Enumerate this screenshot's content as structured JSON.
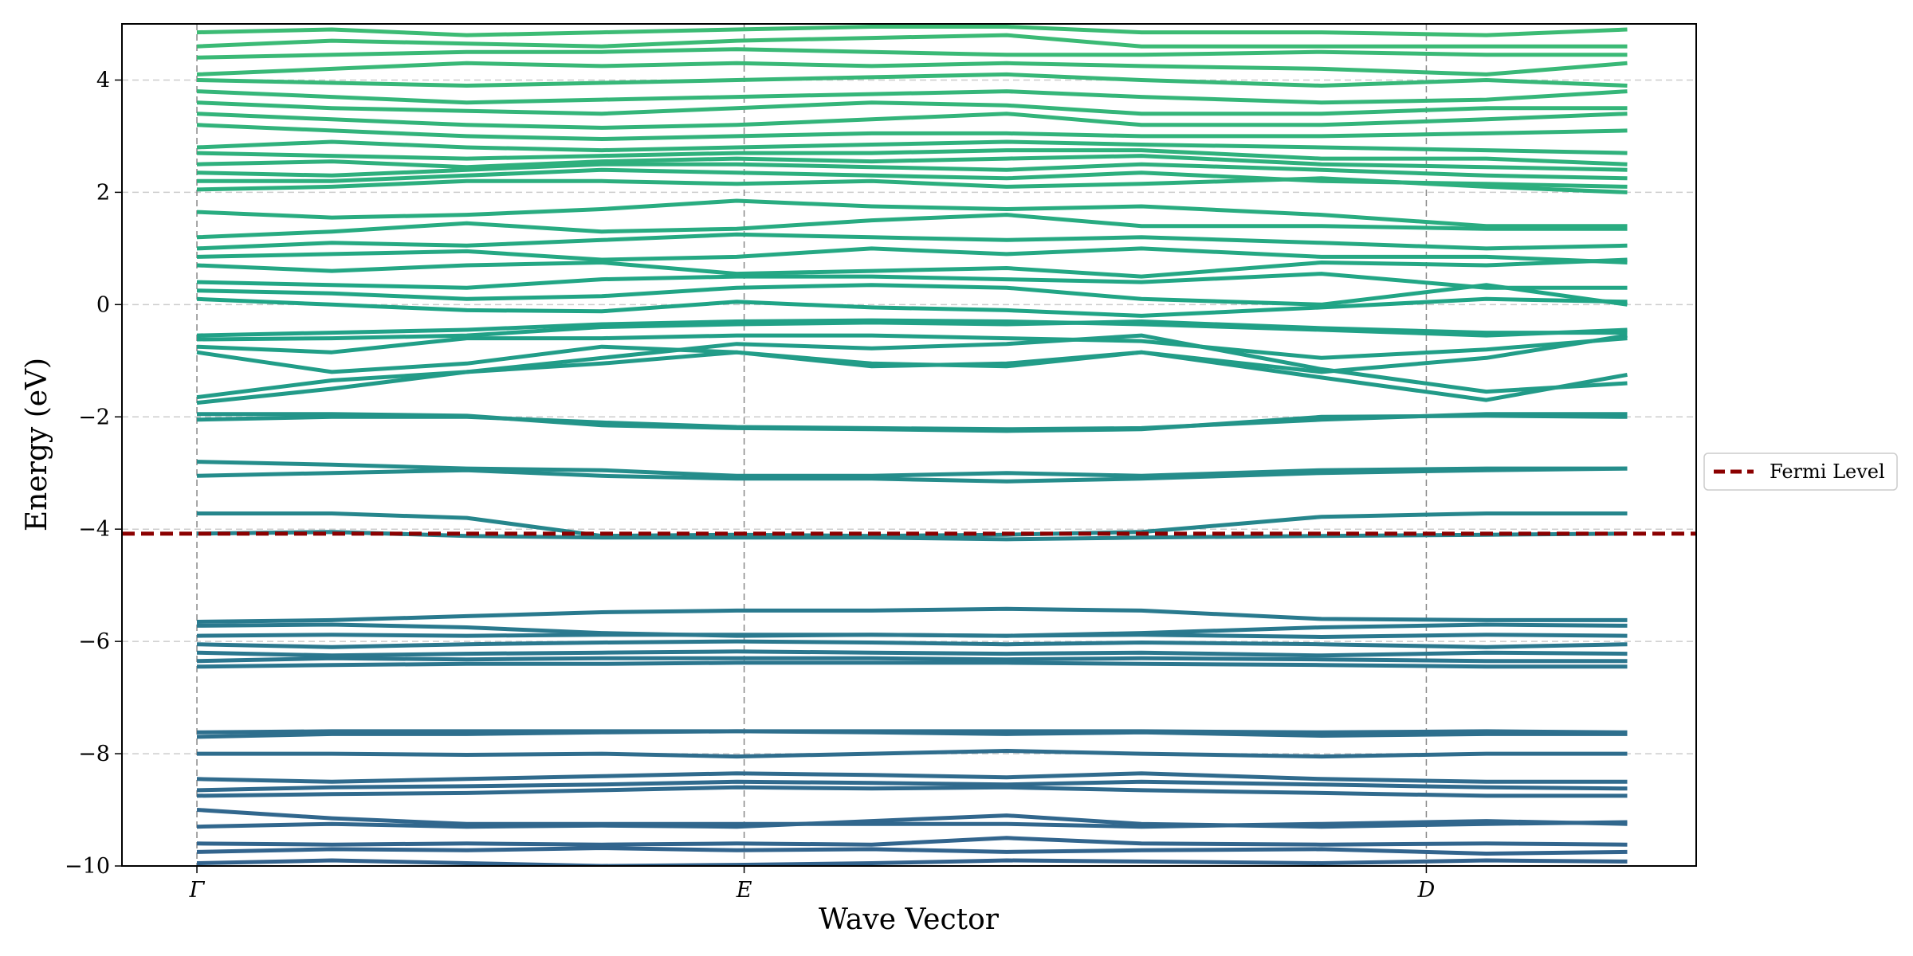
{
  "chart_data": {
    "type": "line",
    "title": "",
    "xlabel": "Wave Vector",
    "ylabel": "Energy (eV)",
    "ylim": [
      -10,
      5
    ],
    "xlim": [
      -0.05,
      1.0
    ],
    "grid": true,
    "legend_position": "center-right-outside",
    "colormap": [
      "#33638d",
      "#287d8e",
      "#20a486",
      "#3dbc74"
    ],
    "x": [
      0.0,
      0.09,
      0.18,
      0.27,
      0.36,
      0.45,
      0.54,
      0.63,
      0.75,
      0.86,
      0.954
    ],
    "x_ticks": [
      {
        "value": 0.0,
        "label": "Γ"
      },
      {
        "value": 0.365,
        "label": "E"
      },
      {
        "value": 0.82,
        "label": "D"
      }
    ],
    "y_ticks": [
      {
        "value": 4,
        "label": "4"
      },
      {
        "value": 2,
        "label": "2"
      },
      {
        "value": 0,
        "label": "0"
      },
      {
        "value": -2,
        "label": "−2"
      },
      {
        "value": -4,
        "label": "−4"
      },
      {
        "value": -6,
        "label": "−6"
      },
      {
        "value": -8,
        "label": "−8"
      },
      {
        "value": -10,
        "label": "−10"
      }
    ],
    "fermi_level": {
      "value": -4.08,
      "label": "Fermi Level",
      "color": "#8b0000"
    },
    "legend": [
      {
        "label": "Fermi Level",
        "color": "#8b0000",
        "style": "dashed"
      }
    ],
    "series": [
      {
        "values": [
          -9.95,
          -9.9,
          -9.95,
          -10.0,
          -9.98,
          -9.95,
          -9.9,
          -9.92,
          -9.95,
          -9.9,
          -9.92
        ]
      },
      {
        "values": [
          -9.75,
          -9.7,
          -9.72,
          -9.68,
          -9.72,
          -9.7,
          -9.75,
          -9.72,
          -9.7,
          -9.78,
          -9.75
        ]
      },
      {
        "values": [
          -9.6,
          -9.62,
          -9.6,
          -9.62,
          -9.6,
          -9.62,
          -9.5,
          -9.6,
          -9.62,
          -9.6,
          -9.62
        ]
      },
      {
        "values": [
          -9.3,
          -9.25,
          -9.3,
          -9.28,
          -9.3,
          -9.2,
          -9.1,
          -9.25,
          -9.3,
          -9.25,
          -9.22
        ]
      },
      {
        "values": [
          -9.0,
          -9.15,
          -9.25,
          -9.25,
          -9.25,
          -9.25,
          -9.25,
          -9.3,
          -9.25,
          -9.2,
          -9.25
        ]
      },
      {
        "values": [
          -8.75,
          -8.72,
          -8.7,
          -8.65,
          -8.6,
          -8.62,
          -8.6,
          -8.65,
          -8.7,
          -8.75,
          -8.75
        ]
      },
      {
        "values": [
          -8.65,
          -8.6,
          -8.58,
          -8.55,
          -8.5,
          -8.52,
          -8.55,
          -8.5,
          -8.55,
          -8.6,
          -8.62
        ]
      },
      {
        "values": [
          -8.45,
          -8.5,
          -8.45,
          -8.4,
          -8.35,
          -8.38,
          -8.42,
          -8.35,
          -8.45,
          -8.5,
          -8.5
        ]
      },
      {
        "values": [
          -8.0,
          -8.0,
          -8.02,
          -8.0,
          -8.05,
          -8.0,
          -7.95,
          -8.0,
          -8.05,
          -8.0,
          -8.0
        ]
      },
      {
        "values": [
          -7.7,
          -7.65,
          -7.65,
          -7.62,
          -7.6,
          -7.62,
          -7.65,
          -7.62,
          -7.68,
          -7.65,
          -7.65
        ]
      },
      {
        "values": [
          -7.62,
          -7.6,
          -7.6,
          -7.6,
          -7.6,
          -7.6,
          -7.6,
          -7.6,
          -7.62,
          -7.6,
          -7.62
        ]
      },
      {
        "values": [
          -6.45,
          -6.42,
          -6.4,
          -6.4,
          -6.38,
          -6.38,
          -6.38,
          -6.4,
          -6.42,
          -6.45,
          -6.45
        ]
      },
      {
        "values": [
          -6.35,
          -6.3,
          -6.32,
          -6.3,
          -6.3,
          -6.3,
          -6.32,
          -6.3,
          -6.32,
          -6.35,
          -6.35
        ]
      },
      {
        "values": [
          -6.2,
          -6.25,
          -6.22,
          -6.2,
          -6.18,
          -6.2,
          -6.22,
          -6.2,
          -6.25,
          -6.2,
          -6.22
        ]
      },
      {
        "values": [
          -6.05,
          -6.1,
          -6.05,
          -6.02,
          -6.0,
          -6.02,
          -6.05,
          -6.02,
          -6.05,
          -6.1,
          -6.05
        ]
      },
      {
        "values": [
          -5.9,
          -5.88,
          -5.9,
          -5.88,
          -5.88,
          -5.88,
          -5.9,
          -5.88,
          -5.92,
          -5.88,
          -5.9
        ]
      },
      {
        "values": [
          -5.72,
          -5.7,
          -5.75,
          -5.85,
          -5.9,
          -5.88,
          -5.9,
          -5.85,
          -5.75,
          -5.7,
          -5.72
        ]
      },
      {
        "values": [
          -5.65,
          -5.62,
          -5.55,
          -5.48,
          -5.45,
          -5.45,
          -5.42,
          -5.45,
          -5.6,
          -5.62,
          -5.62
        ]
      },
      {
        "values": [
          -4.08,
          -4.05,
          -4.12,
          -4.15,
          -4.15,
          -4.15,
          -4.18,
          -4.15,
          -4.12,
          -4.1,
          -4.08
        ]
      },
      {
        "values": [
          -3.72,
          -3.72,
          -3.8,
          -4.12,
          -4.1,
          -4.12,
          -4.1,
          -4.05,
          -3.78,
          -3.72,
          -3.72
        ]
      },
      {
        "values": [
          -3.05,
          -3.0,
          -2.95,
          -3.05,
          -3.1,
          -3.1,
          -3.15,
          -3.1,
          -3.0,
          -2.95,
          -2.92
        ]
      },
      {
        "values": [
          -2.8,
          -2.85,
          -2.92,
          -2.95,
          -3.05,
          -3.05,
          -3.0,
          -3.05,
          -2.95,
          -2.92,
          -2.92
        ]
      },
      {
        "values": [
          -2.05,
          -2.0,
          -2.0,
          -2.1,
          -2.18,
          -2.2,
          -2.22,
          -2.2,
          -2.05,
          -1.95,
          -1.95
        ]
      },
      {
        "values": [
          -1.95,
          -1.95,
          -1.98,
          -2.15,
          -2.2,
          -2.22,
          -2.25,
          -2.22,
          -2.0,
          -1.98,
          -2.0
        ]
      },
      {
        "values": [
          -1.75,
          -1.5,
          -1.2,
          -1.05,
          -0.85,
          -1.1,
          -1.05,
          -0.85,
          -1.3,
          -1.7,
          -1.25
        ]
      },
      {
        "values": [
          -1.65,
          -1.35,
          -1.2,
          -0.95,
          -0.7,
          -0.78,
          -0.7,
          -0.55,
          -1.15,
          -1.55,
          -1.4
        ]
      },
      {
        "values": [
          -0.85,
          -1.2,
          -1.05,
          -0.75,
          -0.85,
          -1.05,
          -1.1,
          -0.85,
          -1.2,
          -0.95,
          -0.55
        ]
      },
      {
        "values": [
          -0.75,
          -0.85,
          -0.6,
          -0.6,
          -0.55,
          -0.55,
          -0.6,
          -0.65,
          -0.95,
          -0.8,
          -0.6
        ]
      },
      {
        "values": [
          -0.62,
          -0.6,
          -0.55,
          -0.4,
          -0.35,
          -0.32,
          -0.35,
          -0.3,
          -0.42,
          -0.5,
          -0.5
        ]
      },
      {
        "values": [
          -0.55,
          -0.5,
          -0.45,
          -0.35,
          -0.3,
          -0.28,
          -0.3,
          -0.35,
          -0.45,
          -0.55,
          -0.45
        ]
      },
      {
        "values": [
          0.1,
          0.0,
          -0.1,
          -0.12,
          0.05,
          -0.05,
          -0.1,
          -0.2,
          -0.05,
          0.1,
          0.05
        ]
      },
      {
        "values": [
          0.25,
          0.2,
          0.1,
          0.15,
          0.3,
          0.35,
          0.3,
          0.1,
          0.0,
          0.35,
          0.0
        ]
      },
      {
        "values": [
          0.4,
          0.35,
          0.3,
          0.45,
          0.5,
          0.5,
          0.45,
          0.4,
          0.55,
          0.3,
          0.3
        ]
      },
      {
        "values": [
          0.7,
          0.6,
          0.7,
          0.75,
          0.55,
          0.6,
          0.65,
          0.5,
          0.75,
          0.7,
          0.8
        ]
      },
      {
        "values": [
          0.85,
          0.9,
          0.95,
          0.8,
          0.85,
          1.0,
          0.9,
          1.0,
          0.85,
          0.85,
          0.75
        ]
      },
      {
        "values": [
          1.0,
          1.1,
          1.05,
          1.15,
          1.25,
          1.2,
          1.15,
          1.2,
          1.1,
          1.0,
          1.05
        ]
      },
      {
        "values": [
          1.2,
          1.3,
          1.45,
          1.3,
          1.35,
          1.5,
          1.6,
          1.4,
          1.4,
          1.35,
          1.35
        ]
      },
      {
        "values": [
          1.65,
          1.55,
          1.6,
          1.7,
          1.85,
          1.75,
          1.7,
          1.75,
          1.6,
          1.4,
          1.4
        ]
      },
      {
        "values": [
          2.05,
          2.1,
          2.2,
          2.2,
          2.15,
          2.2,
          2.1,
          2.15,
          2.25,
          2.1,
          2.0
        ]
      },
      {
        "values": [
          2.2,
          2.2,
          2.3,
          2.4,
          2.35,
          2.3,
          2.25,
          2.35,
          2.2,
          2.15,
          2.1
        ]
      },
      {
        "values": [
          2.35,
          2.3,
          2.4,
          2.5,
          2.5,
          2.45,
          2.4,
          2.5,
          2.4,
          2.3,
          2.25
        ]
      },
      {
        "values": [
          2.5,
          2.55,
          2.45,
          2.55,
          2.6,
          2.55,
          2.6,
          2.65,
          2.5,
          2.45,
          2.4
        ]
      },
      {
        "values": [
          2.7,
          2.65,
          2.6,
          2.65,
          2.7,
          2.7,
          2.75,
          2.75,
          2.6,
          2.6,
          2.5
        ]
      },
      {
        "values": [
          2.8,
          2.9,
          2.8,
          2.75,
          2.8,
          2.85,
          2.9,
          2.85,
          2.8,
          2.75,
          2.7
        ]
      },
      {
        "values": [
          3.2,
          3.1,
          3.0,
          2.95,
          3.0,
          3.05,
          3.05,
          3.0,
          3.0,
          3.05,
          3.1
        ]
      },
      {
        "values": [
          3.4,
          3.3,
          3.2,
          3.15,
          3.2,
          3.3,
          3.4,
          3.2,
          3.2,
          3.3,
          3.4
        ]
      },
      {
        "values": [
          3.6,
          3.5,
          3.45,
          3.4,
          3.5,
          3.6,
          3.55,
          3.4,
          3.4,
          3.5,
          3.5
        ]
      },
      {
        "values": [
          3.8,
          3.7,
          3.6,
          3.65,
          3.7,
          3.75,
          3.8,
          3.7,
          3.6,
          3.65,
          3.8
        ]
      },
      {
        "values": [
          4.0,
          3.95,
          3.9,
          3.95,
          4.0,
          4.05,
          4.1,
          4.0,
          3.9,
          4.0,
          3.9
        ]
      },
      {
        "values": [
          4.1,
          4.2,
          4.3,
          4.25,
          4.3,
          4.25,
          4.3,
          4.25,
          4.2,
          4.1,
          4.3
        ]
      },
      {
        "values": [
          4.4,
          4.45,
          4.5,
          4.5,
          4.55,
          4.5,
          4.45,
          4.45,
          4.5,
          4.45,
          4.45
        ]
      },
      {
        "values": [
          4.6,
          4.7,
          4.65,
          4.6,
          4.7,
          4.75,
          4.8,
          4.6,
          4.6,
          4.6,
          4.6
        ]
      },
      {
        "values": [
          4.85,
          4.9,
          4.8,
          4.85,
          4.9,
          4.95,
          4.95,
          4.85,
          4.85,
          4.8,
          4.9
        ]
      }
    ]
  }
}
